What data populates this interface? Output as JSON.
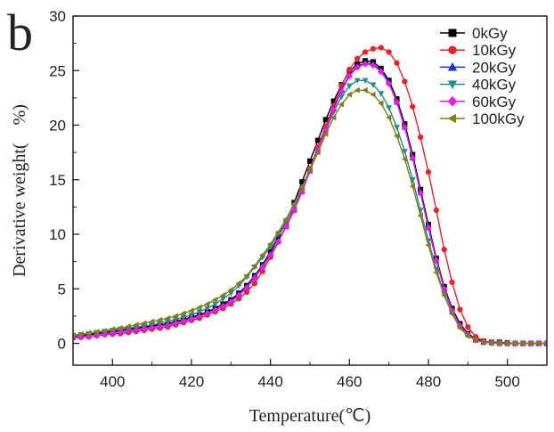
{
  "chart_data": {
    "type": "line",
    "panel_label": "b",
    "xlabel": "Temperature(℃)",
    "ylabel": "Derivative weight(　%)",
    "xlim": [
      390,
      510
    ],
    "ylim": [
      -2,
      30
    ],
    "xticks": [
      400,
      420,
      440,
      460,
      480,
      500
    ],
    "yticks": [
      0,
      5,
      10,
      15,
      20,
      25,
      30
    ],
    "grid": false,
    "legend_position": "top-right",
    "x": [
      390,
      392,
      394,
      396,
      398,
      400,
      402,
      404,
      406,
      408,
      410,
      412,
      414,
      416,
      418,
      420,
      422,
      424,
      426,
      428,
      430,
      432,
      434,
      436,
      438,
      440,
      442,
      444,
      446,
      448,
      450,
      452,
      454,
      456,
      458,
      460,
      462,
      464,
      466,
      468,
      470,
      472,
      474,
      476,
      478,
      480,
      482,
      484,
      486,
      488,
      490,
      492,
      494,
      496,
      498,
      500,
      502,
      504,
      506,
      508,
      510
    ],
    "series": [
      {
        "name": "0kGy",
        "color": "#000000",
        "marker": "square",
        "values": [
          0.6,
          0.7,
          0.8,
          0.9,
          1.0,
          1.1,
          1.2,
          1.3,
          1.4,
          1.5,
          1.6,
          1.7,
          1.8,
          2.0,
          2.2,
          2.4,
          2.6,
          2.9,
          3.2,
          3.6,
          4.0,
          4.6,
          5.3,
          6.2,
          7.2,
          8.4,
          9.8,
          11.2,
          12.9,
          14.8,
          16.7,
          18.6,
          20.5,
          22.2,
          23.7,
          24.9,
          25.6,
          25.9,
          25.8,
          25.2,
          24.1,
          22.4,
          20.1,
          17.3,
          14.1,
          10.9,
          7.8,
          5.2,
          3.2,
          1.8,
          0.9,
          0.4,
          0.2,
          0.1,
          0.1,
          0.05,
          0.0,
          0.0,
          0.0,
          0.0,
          0.0
        ]
      },
      {
        "name": "10kGy",
        "color": "#e8232a",
        "marker": "circle",
        "values": [
          0.5,
          0.55,
          0.6,
          0.7,
          0.8,
          0.85,
          0.9,
          1.0,
          1.1,
          1.2,
          1.3,
          1.4,
          1.5,
          1.7,
          1.9,
          2.1,
          2.3,
          2.6,
          2.9,
          3.2,
          3.6,
          4.1,
          4.7,
          5.5,
          6.6,
          7.9,
          9.3,
          10.8,
          12.4,
          14.2,
          16.0,
          18.0,
          19.9,
          21.8,
          23.6,
          25.1,
          26.1,
          26.7,
          27.0,
          27.1,
          26.7,
          25.7,
          24.0,
          21.7,
          18.9,
          15.7,
          12.2,
          8.6,
          5.6,
          3.1,
          1.5,
          0.6,
          0.2,
          0.1,
          0.05,
          0.0,
          0.0,
          0.0,
          0.0,
          0.0,
          0.0
        ]
      },
      {
        "name": "20kGy",
        "color": "#1530d8",
        "marker": "triangle-up",
        "values": [
          0.6,
          0.65,
          0.7,
          0.8,
          0.9,
          1.0,
          1.1,
          1.2,
          1.3,
          1.4,
          1.5,
          1.6,
          1.7,
          1.9,
          2.1,
          2.3,
          2.5,
          2.8,
          3.1,
          3.4,
          3.9,
          4.5,
          5.2,
          6.1,
          7.1,
          8.2,
          9.4,
          10.7,
          12.2,
          13.9,
          15.8,
          17.7,
          19.6,
          21.5,
          23.2,
          24.6,
          25.4,
          25.7,
          25.6,
          25.0,
          23.9,
          22.1,
          19.8,
          17.0,
          13.8,
          10.6,
          7.6,
          5.0,
          3.0,
          1.6,
          0.8,
          0.3,
          0.1,
          0.05,
          0.0,
          0.0,
          0.0,
          0.0,
          0.0,
          0.0,
          0.0
        ]
      },
      {
        "name": "40kGy",
        "color": "#1d8f8f",
        "marker": "triangle-down",
        "values": [
          0.7,
          0.8,
          0.9,
          1.0,
          1.1,
          1.2,
          1.3,
          1.4,
          1.5,
          1.6,
          1.7,
          1.85,
          2.0,
          2.2,
          2.4,
          2.6,
          2.9,
          3.2,
          3.6,
          4.1,
          4.6,
          5.3,
          6.1,
          7.0,
          7.9,
          8.9,
          10.0,
          11.2,
          12.6,
          14.2,
          15.9,
          17.7,
          19.5,
          21.2,
          22.6,
          23.6,
          24.1,
          24.1,
          23.7,
          22.9,
          21.6,
          19.8,
          17.6,
          15.0,
          12.2,
          9.4,
          6.8,
          4.5,
          2.8,
          1.5,
          0.7,
          0.3,
          0.1,
          0.05,
          0.0,
          0.0,
          0.0,
          0.0,
          0.0,
          0.0,
          0.0
        ]
      },
      {
        "name": "60kGy",
        "color": "#ea1aea",
        "marker": "diamond",
        "values": [
          0.55,
          0.6,
          0.65,
          0.75,
          0.85,
          0.95,
          1.05,
          1.15,
          1.25,
          1.35,
          1.45,
          1.55,
          1.65,
          1.85,
          2.05,
          2.25,
          2.45,
          2.75,
          3.05,
          3.4,
          3.8,
          4.4,
          5.1,
          6.0,
          7.0,
          8.1,
          9.3,
          10.7,
          12.2,
          13.9,
          15.8,
          17.7,
          19.6,
          21.4,
          23.1,
          24.5,
          25.3,
          25.6,
          25.5,
          24.9,
          23.8,
          22.1,
          19.8,
          17.0,
          13.8,
          10.6,
          7.6,
          5.0,
          3.0,
          1.6,
          0.8,
          0.3,
          0.1,
          0.05,
          0.0,
          0.0,
          0.0,
          0.0,
          0.0,
          0.0,
          0.0
        ]
      },
      {
        "name": "100kGy",
        "color": "#7f7f1a",
        "marker": "triangle-left",
        "values": [
          0.75,
          0.85,
          0.95,
          1.05,
          1.15,
          1.3,
          1.4,
          1.55,
          1.7,
          1.85,
          2.0,
          2.15,
          2.3,
          2.5,
          2.75,
          3.0,
          3.3,
          3.6,
          4.0,
          4.4,
          4.9,
          5.5,
          6.2,
          7.1,
          8.1,
          9.1,
          10.2,
          11.4,
          12.8,
          14.3,
          15.9,
          17.5,
          19.2,
          20.7,
          21.9,
          22.8,
          23.2,
          23.2,
          22.8,
          22.0,
          20.7,
          19.0,
          16.9,
          14.4,
          11.7,
          9.0,
          6.5,
          4.4,
          2.7,
          1.4,
          0.7,
          0.3,
          0.1,
          0.05,
          0.0,
          0.0,
          0.0,
          0.0,
          0.0,
          0.0,
          0.0
        ]
      }
    ]
  }
}
